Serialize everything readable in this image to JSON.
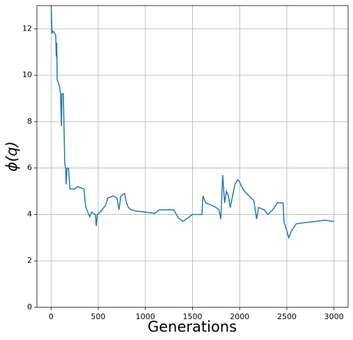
{
  "chart_data": {
    "type": "line",
    "xlabel": "Generations",
    "ylabel": "ϕ(q)",
    "xlim": [
      -150,
      3150
    ],
    "ylim": [
      0,
      13
    ],
    "xticks": [
      0,
      500,
      1000,
      1500,
      2000,
      2500,
      3000
    ],
    "yticks": [
      0,
      2,
      4,
      6,
      8,
      10,
      12
    ],
    "grid": true,
    "x": [
      0,
      10,
      20,
      40,
      50,
      55,
      60,
      65,
      75,
      90,
      100,
      110,
      115,
      130,
      140,
      145,
      155,
      160,
      170,
      185,
      200,
      250,
      280,
      350,
      360,
      370,
      390,
      410,
      430,
      470,
      480,
      490,
      520,
      580,
      600,
      660,
      700,
      720,
      740,
      780,
      800,
      820,
      850,
      900,
      1000,
      1100,
      1150,
      1200,
      1300,
      1350,
      1400,
      1450,
      1500,
      1600,
      1610,
      1640,
      1700,
      1750,
      1780,
      1800,
      1820,
      1840,
      1860,
      1880,
      1900,
      1950,
      1980,
      2000,
      2020,
      2050,
      2100,
      2150,
      2180,
      2200,
      2260,
      2300,
      2350,
      2400,
      2460,
      2470,
      2500,
      2520,
      2550,
      2600,
      2700,
      2800,
      2900,
      3000
    ],
    "series": [
      {
        "color": "#1f77b4",
        "values": [
          13.3,
          11.8,
          11.9,
          11.8,
          11.7,
          10.8,
          11.4,
          9.8,
          9.7,
          9.5,
          9.2,
          7.8,
          9.2,
          9.2,
          7.3,
          6.2,
          6.0,
          5.3,
          6.0,
          6.0,
          5.1,
          5.1,
          5.2,
          5.1,
          4.6,
          4.3,
          4.1,
          3.9,
          4.1,
          4.0,
          3.5,
          4.0,
          4.1,
          4.4,
          4.7,
          4.8,
          4.7,
          4.2,
          4.8,
          4.9,
          4.5,
          4.3,
          4.2,
          4.15,
          4.1,
          4.05,
          4.2,
          4.2,
          4.2,
          3.85,
          3.7,
          3.85,
          4.0,
          4.0,
          4.8,
          4.5,
          4.4,
          4.3,
          4.2,
          3.8,
          5.7,
          4.5,
          5.0,
          4.8,
          4.3,
          5.3,
          5.5,
          5.4,
          5.2,
          5.0,
          4.8,
          4.6,
          3.8,
          4.3,
          4.2,
          4.0,
          4.2,
          4.5,
          4.5,
          3.7,
          3.3,
          3.0,
          3.3,
          3.6,
          3.65,
          3.7,
          3.75,
          3.7
        ]
      }
    ]
  }
}
